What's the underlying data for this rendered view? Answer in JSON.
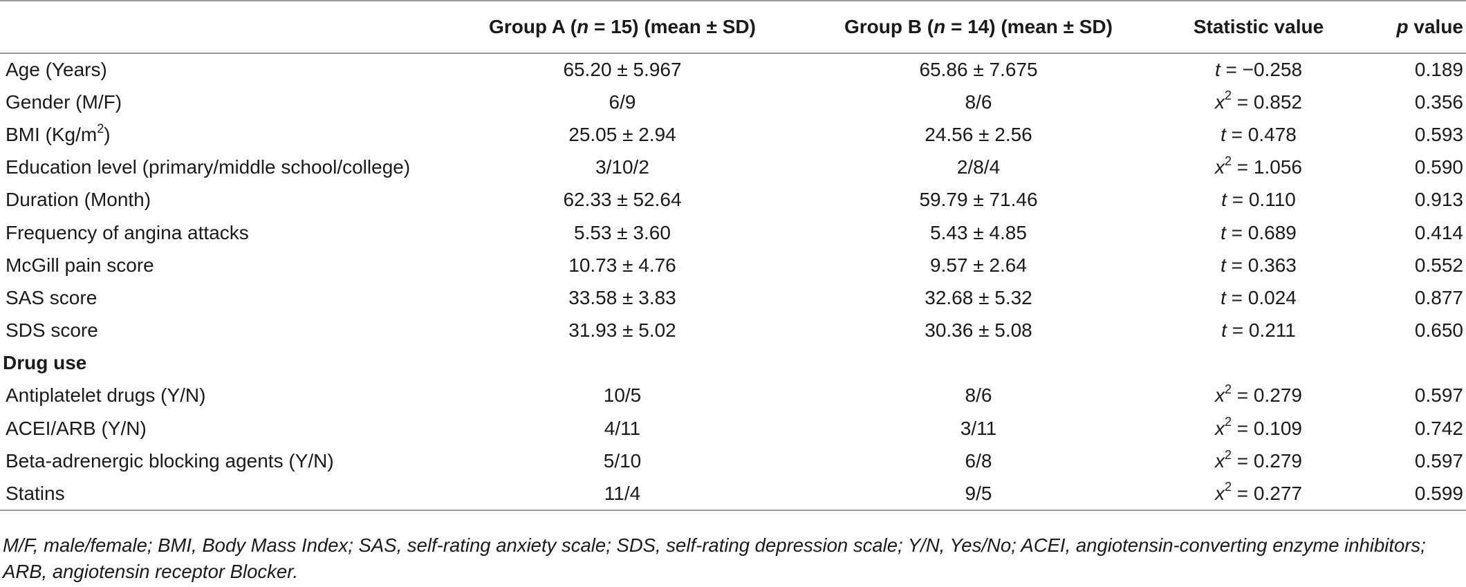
{
  "table": {
    "headers": {
      "group_a": {
        "pre": "Group A (",
        "n": "n",
        "post": " = 15) (mean ± SD)"
      },
      "group_b": {
        "pre": "Group B (",
        "n": "n",
        "post": " = 14) (mean ± SD)"
      },
      "statistic": "Statistic value",
      "p": {
        "italic": "p",
        "rest": " value"
      }
    },
    "rows": [
      {
        "label": "Age (Years)",
        "a": "65.20 ± 5.967",
        "b": "65.86 ± 7.675",
        "stat_sym": "t",
        "stat_rest": " = −0.258",
        "p": "0.189"
      },
      {
        "label": "Gender (M/F)",
        "a": "6/9",
        "b": "8/6",
        "stat_sym": "x",
        "stat_sup": "2",
        "stat_rest": " = 0.852",
        "p": "0.356"
      },
      {
        "label_pre": "BMI (Kg/m",
        "label_sup": "2",
        "label_post": ")",
        "a": "25.05 ± 2.94",
        "b": "24.56 ± 2.56",
        "stat_sym": "t",
        "stat_rest": " = 0.478",
        "p": "0.593"
      },
      {
        "label": "Education level (primary/middle school/college)",
        "a": "3/10/2",
        "b": "2/8/4",
        "stat_sym": "x",
        "stat_sup": "2",
        "stat_rest": " = 1.056",
        "p": "0.590"
      },
      {
        "label": "Duration (Month)",
        "a": "62.33 ± 52.64",
        "b": "59.79 ± 71.46",
        "stat_sym": "t",
        "stat_rest": " = 0.110",
        "p": "0.913"
      },
      {
        "label": "Frequency of angina attacks",
        "a": "5.53 ± 3.60",
        "b": "5.43 ± 4.85",
        "stat_sym": "t",
        "stat_rest": " = 0.689",
        "p": "0.414"
      },
      {
        "label": "McGill pain score",
        "a": "10.73 ± 4.76",
        "b": "9.57 ± 2.64",
        "stat_sym": "t",
        "stat_rest": " = 0.363",
        "p": "0.552"
      },
      {
        "label": "SAS score",
        "a": "33.58 ± 3.83",
        "b": "32.68 ± 5.32",
        "stat_sym": "t",
        "stat_rest": " = 0.024",
        "p": "0.877"
      },
      {
        "label": "SDS score",
        "a": "31.93 ± 5.02",
        "b": "30.36 ± 5.08",
        "stat_sym": "t",
        "stat_rest": " = 0.211",
        "p": "0.650"
      }
    ],
    "section_label": "Drug use",
    "drug_rows": [
      {
        "label": "Antiplatelet drugs (Y/N)",
        "a": "10/5",
        "b": "8/6",
        "stat_sym": "x",
        "stat_sup": "2",
        "stat_rest": " = 0.279",
        "p": "0.597"
      },
      {
        "label": "ACEI/ARB (Y/N)",
        "a": "4/11",
        "b": "3/11",
        "stat_sym": "x",
        "stat_sup": "2",
        "stat_rest": " = 0.109",
        "p": "0.742"
      },
      {
        "label": "Beta-adrenergic blocking agents (Y/N)",
        "a": "5/10",
        "b": "6/8",
        "stat_sym": "x",
        "stat_sup": "2",
        "stat_rest": " = 0.279",
        "p": "0.597"
      },
      {
        "label": "Statins",
        "a": "11/4",
        "b": "9/5",
        "stat_sym": "x",
        "stat_sup": "2",
        "stat_rest": " = 0.277",
        "p": "0.599"
      }
    ]
  },
  "footnote": {
    "line1": "M/F, male/female; BMI, Body Mass Index; SAS, self-rating anxiety scale; SDS, self-rating depression scale; Y/N, Yes/No; ACEI, angiotensin-converting enzyme inhibitors;",
    "line2": "ARB, angiotensin receptor Blocker."
  }
}
